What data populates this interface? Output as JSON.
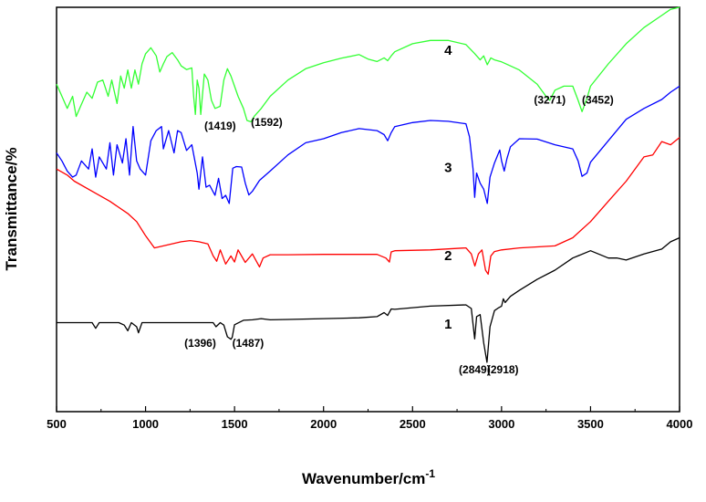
{
  "chart_data": {
    "type": "line",
    "xlabel": "Wavenumber/cm",
    "xlabel_superscript": "-1",
    "ylabel": "Transmittance/%",
    "xlim": [
      500,
      4000
    ],
    "ylim": [
      0,
      100
    ],
    "x_ticks": [
      500,
      1000,
      1500,
      2000,
      2500,
      3000,
      3500,
      4000
    ],
    "x_tick_labels": [
      "500",
      "1000",
      "1500",
      "2000",
      "2500",
      "3000",
      "3500",
      "4000"
    ],
    "grid": false,
    "legend": "none",
    "series": [
      {
        "name": "1",
        "color": "#000000",
        "label_at": [
          2700,
          20.5
        ],
        "points": [
          [
            500,
            22
          ],
          [
            600,
            22
          ],
          [
            700,
            22
          ],
          [
            720,
            20.6
          ],
          [
            740,
            22
          ],
          [
            850,
            22
          ],
          [
            880,
            21.4
          ],
          [
            900,
            20
          ],
          [
            920,
            22
          ],
          [
            950,
            21
          ],
          [
            960,
            19.5
          ],
          [
            980,
            22
          ],
          [
            1100,
            22
          ],
          [
            1300,
            22
          ],
          [
            1380,
            22
          ],
          [
            1396,
            21
          ],
          [
            1420,
            22
          ],
          [
            1440,
            21.4
          ],
          [
            1460,
            18.5
          ],
          [
            1480,
            17.9
          ],
          [
            1487,
            18.4
          ],
          [
            1500,
            21.5
          ],
          [
            1550,
            22.6
          ],
          [
            1600,
            22.7
          ],
          [
            1650,
            23
          ],
          [
            1700,
            22.7
          ],
          [
            1800,
            22.8
          ],
          [
            2000,
            23
          ],
          [
            2200,
            23.2
          ],
          [
            2300,
            23.5
          ],
          [
            2340,
            24.5
          ],
          [
            2360,
            23.8
          ],
          [
            2380,
            25.4
          ],
          [
            2400,
            25.3
          ],
          [
            2600,
            26.1
          ],
          [
            2800,
            26.4
          ],
          [
            2830,
            25.5
          ],
          [
            2849,
            18
          ],
          [
            2860,
            23.5
          ],
          [
            2880,
            24
          ],
          [
            2900,
            17
          ],
          [
            2918,
            12.2
          ],
          [
            2935,
            21
          ],
          [
            2960,
            25
          ],
          [
            2980,
            25.6
          ],
          [
            3000,
            26.1
          ],
          [
            3010,
            27.9
          ],
          [
            3020,
            27
          ],
          [
            3050,
            28.5
          ],
          [
            3100,
            30
          ],
          [
            3200,
            32.7
          ],
          [
            3300,
            35
          ],
          [
            3400,
            38
          ],
          [
            3500,
            39.8
          ],
          [
            3600,
            38
          ],
          [
            3650,
            38
          ],
          [
            3700,
            37.5
          ],
          [
            3800,
            39
          ],
          [
            3900,
            40.2
          ],
          [
            3950,
            42
          ],
          [
            4000,
            43
          ]
        ]
      },
      {
        "name": "2",
        "color": "#ff0000",
        "label_at": [
          2700,
          37.5
        ],
        "points": [
          [
            500,
            60
          ],
          [
            560,
            58.5
          ],
          [
            600,
            57
          ],
          [
            700,
            54.5
          ],
          [
            800,
            52
          ],
          [
            900,
            49
          ],
          [
            950,
            47
          ],
          [
            1000,
            43.5
          ],
          [
            1050,
            40.5
          ],
          [
            1100,
            41
          ],
          [
            1200,
            42
          ],
          [
            1250,
            42.3
          ],
          [
            1300,
            42
          ],
          [
            1350,
            41.5
          ],
          [
            1380,
            38.5
          ],
          [
            1400,
            37.2
          ],
          [
            1420,
            40
          ],
          [
            1450,
            36.5
          ],
          [
            1480,
            38.5
          ],
          [
            1500,
            37
          ],
          [
            1520,
            40
          ],
          [
            1560,
            36.9
          ],
          [
            1600,
            39
          ],
          [
            1640,
            35.8
          ],
          [
            1660,
            38
          ],
          [
            1700,
            38.8
          ],
          [
            1800,
            38.8
          ],
          [
            2000,
            38.9
          ],
          [
            2300,
            38.9
          ],
          [
            2350,
            38
          ],
          [
            2370,
            37
          ],
          [
            2380,
            39.5
          ],
          [
            2400,
            39.8
          ],
          [
            2600,
            40
          ],
          [
            2800,
            40.5
          ],
          [
            2830,
            39
          ],
          [
            2850,
            36
          ],
          [
            2870,
            39
          ],
          [
            2890,
            40
          ],
          [
            2910,
            35
          ],
          [
            2925,
            34
          ],
          [
            2940,
            38.5
          ],
          [
            2960,
            39.6
          ],
          [
            3000,
            40
          ],
          [
            3100,
            40.5
          ],
          [
            3300,
            41
          ],
          [
            3400,
            43
          ],
          [
            3500,
            47
          ],
          [
            3600,
            52
          ],
          [
            3700,
            57
          ],
          [
            3800,
            63
          ],
          [
            3850,
            63.5
          ],
          [
            3900,
            66.8
          ],
          [
            3950,
            66
          ],
          [
            4000,
            67.8
          ]
        ]
      },
      {
        "name": "3",
        "color": "#0000ff",
        "label_at": [
          2700,
          59.3
        ],
        "points": [
          [
            500,
            64
          ],
          [
            530,
            62
          ],
          [
            560,
            59.5
          ],
          [
            590,
            58
          ],
          [
            610,
            58.5
          ],
          [
            640,
            62
          ],
          [
            680,
            60
          ],
          [
            700,
            65
          ],
          [
            720,
            58
          ],
          [
            740,
            63
          ],
          [
            780,
            60
          ],
          [
            800,
            66.5
          ],
          [
            820,
            58.5
          ],
          [
            840,
            66
          ],
          [
            870,
            61.5
          ],
          [
            890,
            67.5
          ],
          [
            910,
            58.5
          ],
          [
            930,
            70.5
          ],
          [
            950,
            62
          ],
          [
            970,
            60
          ],
          [
            1000,
            58.5
          ],
          [
            1030,
            67
          ],
          [
            1060,
            69.5
          ],
          [
            1090,
            70.5
          ],
          [
            1100,
            65
          ],
          [
            1130,
            69.5
          ],
          [
            1160,
            64
          ],
          [
            1180,
            69.5
          ],
          [
            1200,
            69
          ],
          [
            1230,
            64.6
          ],
          [
            1260,
            66
          ],
          [
            1290,
            59
          ],
          [
            1300,
            55
          ],
          [
            1320,
            63
          ],
          [
            1340,
            55.5
          ],
          [
            1360,
            56
          ],
          [
            1390,
            53.5
          ],
          [
            1410,
            57.7
          ],
          [
            1430,
            52.7
          ],
          [
            1450,
            53.5
          ],
          [
            1470,
            51.5
          ],
          [
            1490,
            60.2
          ],
          [
            1510,
            60.6
          ],
          [
            1540,
            60.5
          ],
          [
            1560,
            56.5
          ],
          [
            1580,
            53.6
          ],
          [
            1600,
            54.5
          ],
          [
            1640,
            57.2
          ],
          [
            1700,
            59.5
          ],
          [
            1800,
            63.5
          ],
          [
            1900,
            66.5
          ],
          [
            2000,
            67.5
          ],
          [
            2100,
            69
          ],
          [
            2200,
            70
          ],
          [
            2300,
            69.5
          ],
          [
            2340,
            68.5
          ],
          [
            2360,
            67
          ],
          [
            2380,
            69
          ],
          [
            2400,
            70.5
          ],
          [
            2500,
            71.5
          ],
          [
            2600,
            72
          ],
          [
            2700,
            71.8
          ],
          [
            2800,
            71.2
          ],
          [
            2820,
            68
          ],
          [
            2840,
            60
          ],
          [
            2849,
            53
          ],
          [
            2860,
            59
          ],
          [
            2880,
            56.5
          ],
          [
            2900,
            55
          ],
          [
            2920,
            51.5
          ],
          [
            2935,
            58
          ],
          [
            2960,
            61.5
          ],
          [
            2990,
            64.7
          ],
          [
            3000,
            62
          ],
          [
            3015,
            59.5
          ],
          [
            3030,
            62.5
          ],
          [
            3050,
            65.5
          ],
          [
            3100,
            67.5
          ],
          [
            3200,
            67.4
          ],
          [
            3300,
            66
          ],
          [
            3400,
            65
          ],
          [
            3430,
            62
          ],
          [
            3452,
            58.2
          ],
          [
            3480,
            59
          ],
          [
            3500,
            61.7
          ],
          [
            3600,
            67
          ],
          [
            3700,
            72.3
          ],
          [
            3800,
            75
          ],
          [
            3900,
            77.2
          ],
          [
            3950,
            79
          ],
          [
            4000,
            80.5
          ]
        ]
      },
      {
        "name": "4",
        "color": "#33ff33",
        "label_at": [
          2700,
          88.3
        ],
        "points": [
          [
            500,
            81
          ],
          [
            530,
            78
          ],
          [
            560,
            75
          ],
          [
            590,
            78
          ],
          [
            610,
            73
          ],
          [
            640,
            76
          ],
          [
            670,
            79
          ],
          [
            700,
            77.5
          ],
          [
            730,
            81.5
          ],
          [
            760,
            82
          ],
          [
            790,
            78
          ],
          [
            810,
            82
          ],
          [
            840,
            76.2
          ],
          [
            860,
            83
          ],
          [
            880,
            80
          ],
          [
            900,
            84.5
          ],
          [
            920,
            80
          ],
          [
            940,
            84.5
          ],
          [
            960,
            81
          ],
          [
            980,
            86
          ],
          [
            1000,
            88.5
          ],
          [
            1030,
            90
          ],
          [
            1060,
            88
          ],
          [
            1080,
            84
          ],
          [
            1100,
            86
          ],
          [
            1120,
            87.8
          ],
          [
            1150,
            88.8
          ],
          [
            1180,
            87
          ],
          [
            1200,
            85.5
          ],
          [
            1230,
            84.6
          ],
          [
            1260,
            85
          ],
          [
            1270,
            78
          ],
          [
            1280,
            73.5
          ],
          [
            1290,
            82
          ],
          [
            1300,
            80
          ],
          [
            1310,
            73.5
          ],
          [
            1330,
            83.5
          ],
          [
            1350,
            82
          ],
          [
            1370,
            77
          ],
          [
            1390,
            75
          ],
          [
            1419,
            75.5
          ],
          [
            1440,
            82
          ],
          [
            1460,
            84.8
          ],
          [
            1480,
            83
          ],
          [
            1500,
            80.5
          ],
          [
            1520,
            78
          ],
          [
            1550,
            75
          ],
          [
            1570,
            72
          ],
          [
            1592,
            71.7
          ],
          [
            1610,
            73
          ],
          [
            1650,
            75
          ],
          [
            1700,
            78
          ],
          [
            1800,
            82
          ],
          [
            1900,
            84.8
          ],
          [
            2000,
            86.3
          ],
          [
            2100,
            87.4
          ],
          [
            2200,
            88.3
          ],
          [
            2250,
            87.2
          ],
          [
            2300,
            86.6
          ],
          [
            2340,
            87.5
          ],
          [
            2360,
            86.8
          ],
          [
            2380,
            88
          ],
          [
            2400,
            89
          ],
          [
            2500,
            91
          ],
          [
            2600,
            91.8
          ],
          [
            2700,
            91.8
          ],
          [
            2800,
            90.8
          ],
          [
            2850,
            88.5
          ],
          [
            2880,
            87
          ],
          [
            2900,
            88
          ],
          [
            2920,
            85.8
          ],
          [
            2940,
            87.5
          ],
          [
            2960,
            87
          ],
          [
            3000,
            86.5
          ],
          [
            3050,
            85.5
          ],
          [
            3100,
            84.5
          ],
          [
            3200,
            81
          ],
          [
            3250,
            78
          ],
          [
            3271,
            77
          ],
          [
            3300,
            79.5
          ],
          [
            3350,
            80.5
          ],
          [
            3400,
            80.5
          ],
          [
            3430,
            77
          ],
          [
            3452,
            74.2
          ],
          [
            3480,
            77.5
          ],
          [
            3500,
            80.5
          ],
          [
            3600,
            86
          ],
          [
            3700,
            91
          ],
          [
            3800,
            95
          ],
          [
            3900,
            98
          ],
          [
            3950,
            99.5
          ],
          [
            4000,
            100
          ]
        ]
      }
    ],
    "annotations": [
      {
        "text": "(1396)",
        "x": 1396,
        "y": 16,
        "anchor": "end"
      },
      {
        "text": "(1487)",
        "x": 1487,
        "y": 16,
        "anchor": "start"
      },
      {
        "text": "(2849)",
        "x": 2849,
        "y": 9.5,
        "anchor": "middle"
      },
      {
        "text": "(2918)",
        "x": 2918,
        "y": 9.5,
        "anchor": "start"
      },
      {
        "text": "(1419)",
        "x": 1419,
        "y": 69.7,
        "anchor": "middle"
      },
      {
        "text": "(1592)",
        "x": 1592,
        "y": 70.7,
        "anchor": "start"
      },
      {
        "text": "(3271)",
        "x": 3271,
        "y": 76.2,
        "anchor": "middle"
      },
      {
        "text": "(3452)",
        "x": 3452,
        "y": 76.2,
        "anchor": "start"
      }
    ]
  }
}
